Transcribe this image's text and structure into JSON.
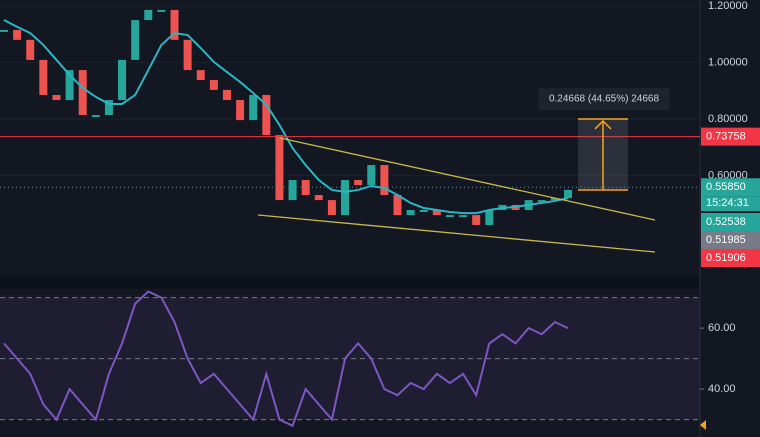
{
  "chart_data": [
    {
      "type": "candlestick",
      "series": [
        {
          "name": "Price",
          "up_color": "#26a69a",
          "down_color": "#ef5350",
          "values": [
            1.115,
            1.08,
            1.009,
            0.885,
            0.867,
            0.973,
            0.814,
            0.814,
            0.867,
            1.009,
            1.15,
            1.186,
            1.186,
            1.08,
            0.973,
            0.938,
            0.903,
            0.867,
            0.796,
            0.885,
            0.743,
            0.513,
            0.584,
            0.531,
            0.513,
            0.46,
            0.584,
            0.566,
            0.637,
            0.531,
            0.46,
            0.478,
            0.478,
            0.46,
            0.46,
            0.46,
            0.425,
            0.478,
            0.496,
            0.478,
            0.513,
            0.513,
            0.52,
            0.549
          ]
        },
        {
          "name": "MA",
          "color": "#2ab6c4",
          "values": [
            1.15,
            1.126,
            1.104,
            1.062,
            1.009,
            0.956,
            0.91,
            0.878,
            0.853,
            0.853,
            0.885,
            0.973,
            1.062,
            1.104,
            1.097,
            1.051,
            1.002,
            0.966,
            0.931,
            0.892,
            0.85,
            0.779,
            0.697,
            0.637,
            0.584,
            0.549,
            0.542,
            0.549,
            0.563,
            0.556,
            0.531,
            0.503,
            0.485,
            0.478,
            0.471,
            0.467,
            0.467,
            0.478,
            0.485,
            0.489,
            0.496,
            0.503,
            0.51,
            0.52
          ]
        }
      ],
      "ylim": [
        0.248,
        1.221
      ],
      "yticks": [
        {
          "value": 1.2,
          "label": "1.20000"
        },
        {
          "value": 1.0,
          "label": "1.00000"
        },
        {
          "value": 0.8,
          "label": "0.80000"
        },
        {
          "value": 0.6,
          "label": "0.60000"
        }
      ],
      "price_lines": [
        {
          "value": 0.73758,
          "label": "0.73758",
          "color": "#f23645",
          "style": "solid"
        },
        {
          "value": 0.5585,
          "label": "0.55850",
          "color": "#26a69a",
          "style": "dotted"
        }
      ],
      "countdown": "15:24:31",
      "price_labels": [
        {
          "value": 0.52538,
          "label": "0.52538",
          "color": "#26a69a"
        },
        {
          "value": 0.51985,
          "label": "0.51985",
          "color": "#787b86"
        },
        {
          "value": 0.51906,
          "label": "0.51906",
          "color": "#f23645"
        }
      ],
      "measure_label": "0.24668 (44.65%) 24668"
    },
    {
      "type": "line",
      "series": [
        {
          "name": "RSI",
          "color": "#7e57c2",
          "values": [
            55,
            50,
            45,
            35,
            30,
            40,
            35,
            30,
            45,
            55,
            68,
            72,
            70,
            62,
            50,
            42,
            45,
            40,
            35,
            30,
            45,
            30,
            28,
            40,
            35,
            30,
            50,
            55,
            50,
            40,
            38,
            42,
            40,
            45,
            42,
            45,
            38,
            55,
            58,
            55,
            60,
            58,
            62,
            60
          ]
        }
      ],
      "ylim": [
        24.3,
        72.5
      ],
      "yticks": [
        {
          "value": 60,
          "label": "60.00"
        },
        {
          "value": 40,
          "label": "40.00"
        }
      ],
      "bands": [
        70,
        50,
        30
      ]
    }
  ]
}
